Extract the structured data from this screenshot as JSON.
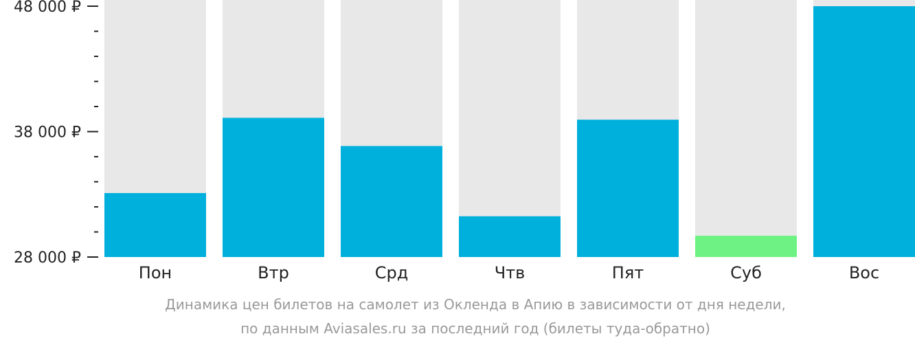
{
  "chart_data": {
    "type": "bar",
    "categories": [
      "Пон",
      "Втр",
      "Срд",
      "Чтв",
      "Пят",
      "Суб",
      "Вос"
    ],
    "values": [
      33100,
      39100,
      36850,
      31250,
      38950,
      29700,
      48000
    ],
    "ylim": [
      28000,
      48000
    ],
    "y_ticks": [
      {
        "value": 48000,
        "label": "48 000 ₽"
      },
      {
        "value": 38000,
        "label": "38 000 ₽"
      },
      {
        "value": 28000,
        "label": "28 000 ₽"
      }
    ],
    "minor_tick_step": 2000,
    "bar_color": "#00b0dc",
    "highlight_color": "#6ef283",
    "highlight_index": 5,
    "background_bar_color": "#e8e8e8",
    "axis_color": "#222222",
    "caption": [
      "Динамика цен билетов на самолет из Окленда в Апию в зависимости от дня недели,",
      "по данным Aviasales.ru за последний год (билеты туда-обратно)"
    ]
  }
}
